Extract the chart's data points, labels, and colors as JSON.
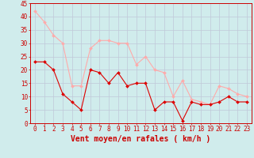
{
  "hours": [
    0,
    1,
    2,
    3,
    4,
    5,
    6,
    7,
    8,
    9,
    10,
    11,
    12,
    13,
    14,
    15,
    16,
    17,
    18,
    19,
    20,
    21,
    22,
    23
  ],
  "vent_moyen": [
    23,
    23,
    20,
    11,
    8,
    5,
    20,
    19,
    15,
    19,
    14,
    15,
    15,
    5,
    8,
    8,
    1,
    8,
    7,
    7,
    8,
    10,
    8,
    8
  ],
  "vent_rafales": [
    42,
    38,
    33,
    30,
    14,
    14,
    28,
    31,
    31,
    30,
    30,
    22,
    25,
    20,
    19,
    10,
    16,
    9,
    8,
    7,
    14,
    13,
    11,
    10
  ],
  "moyen_color": "#dd0000",
  "rafales_color": "#ffaaaa",
  "bg_color": "#d0ecec",
  "grid_color": "#c0c8d8",
  "xlabel": "Vent moyen/en rafales ( km/h )",
  "ylim": [
    0,
    45
  ],
  "yticks": [
    0,
    5,
    10,
    15,
    20,
    25,
    30,
    35,
    40,
    45
  ],
  "tick_fontsize": 5.5,
  "label_fontsize": 7.0
}
